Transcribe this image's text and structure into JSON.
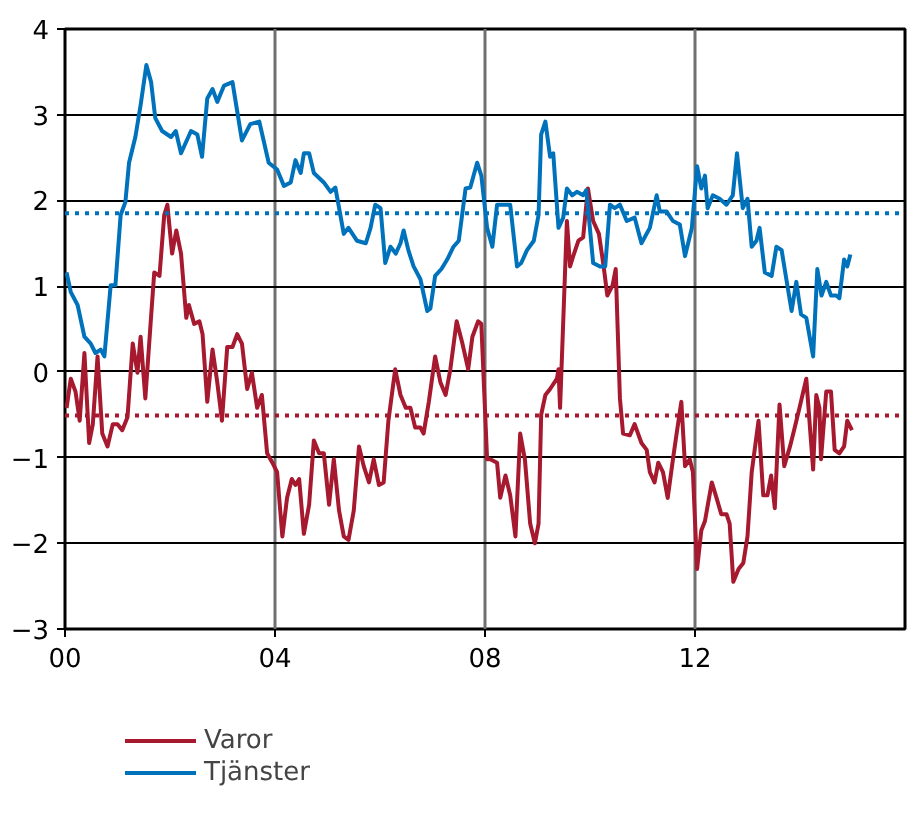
{
  "chart_data": {
    "type": "line",
    "xlim": [
      2000,
      2016
    ],
    "ylim": [
      -3,
      4
    ],
    "xticks": [
      {
        "value": 2000,
        "label": "00"
      },
      {
        "value": 2004,
        "label": "04"
      },
      {
        "value": 2008,
        "label": "08"
      },
      {
        "value": 2012,
        "label": "12"
      }
    ],
    "yticks": [
      -3,
      -2,
      -1,
      0,
      1,
      2,
      3,
      4
    ],
    "grid": true,
    "legend": "bottom",
    "line_style": "solid",
    "ref_lines": [
      {
        "axis": "y",
        "value": 1.85,
        "label": null,
        "color": "#0072bc",
        "line_style": "dotted"
      },
      {
        "axis": "y",
        "value": -0.51,
        "label": null,
        "color": "#a6192e",
        "line_style": "dotted"
      }
    ],
    "series": [
      {
        "name": "Varor",
        "color": "#a6192e",
        "x": [
          2000.03,
          2000.11,
          2000.2,
          2000.28,
          2000.37,
          2000.46,
          2000.53,
          2000.62,
          2000.71,
          2000.81,
          2000.91,
          2001.0,
          2001.09,
          2001.19,
          2001.29,
          2001.38,
          2001.44,
          2001.53,
          2001.63,
          2001.7,
          2001.8,
          2001.89,
          2001.95,
          2002.04,
          2002.12,
          2002.21,
          2002.31,
          2002.36,
          2002.46,
          2002.56,
          2002.62,
          2002.71,
          2002.81,
          2002.9,
          2002.99,
          2003.09,
          2003.19,
          2003.28,
          2003.37,
          2003.47,
          2003.56,
          2003.66,
          2003.75,
          2003.85,
          2003.95,
          2004.04,
          2004.14,
          2004.23,
          2004.32,
          2004.39,
          2004.46,
          2004.55,
          2004.65,
          2004.74,
          2004.84,
          2004.93,
          2005.03,
          2005.12,
          2005.22,
          2005.31,
          2005.4,
          2005.5,
          2005.6,
          2005.69,
          2005.79,
          2005.88,
          2005.98,
          2006.07,
          2006.16,
          2006.29,
          2006.39,
          2006.49,
          2006.58,
          2006.67,
          2006.77,
          2006.83,
          2006.93,
          2007.05,
          2007.15,
          2007.25,
          2007.34,
          2007.46,
          2007.57,
          2007.68,
          2007.76,
          2007.87,
          2007.93,
          2008.04,
          2008.1,
          2008.23,
          2008.29,
          2008.39,
          2008.48,
          2008.58,
          2008.67,
          2008.76,
          2008.86,
          2008.95,
          2009.02,
          2009.07,
          2009.15,
          2009.24,
          2009.37,
          2009.4,
          2009.43,
          2009.56,
          2009.62,
          2009.68,
          2009.78,
          2009.87,
          2009.96,
          2010.06,
          2010.17,
          2010.26,
          2010.33,
          2010.43,
          2010.49,
          2010.57,
          2010.63,
          2010.76,
          2010.85,
          2010.98,
          2011.08,
          2011.14,
          2011.23,
          2011.3,
          2011.39,
          2011.48,
          2011.58,
          2011.65,
          2011.74,
          2011.81,
          2011.9,
          2011.96,
          2012.04,
          2012.12,
          2012.19,
          2012.32,
          2012.41,
          2012.5,
          2012.6,
          2012.66,
          2012.73,
          2012.83,
          2012.92,
          2013.0,
          2013.08,
          2013.21,
          2013.3,
          2013.38,
          2013.45,
          2013.52,
          2013.61,
          2013.7,
          2013.81,
          2013.9,
          2013.99,
          2014.12,
          2014.25,
          2014.31,
          2014.37,
          2014.4,
          2014.5,
          2014.59,
          2014.66,
          2014.75,
          2014.84,
          2014.9,
          2014.99
        ],
        "values": [
          -0.42,
          -0.08,
          -0.23,
          -0.57,
          0.22,
          -0.83,
          -0.61,
          0.18,
          -0.72,
          -0.87,
          -0.61,
          -0.61,
          -0.68,
          -0.53,
          0.33,
          -0.01,
          0.41,
          -0.31,
          0.56,
          1.16,
          1.12,
          1.83,
          1.95,
          1.38,
          1.65,
          1.38,
          0.63,
          0.78,
          0.56,
          0.59,
          0.44,
          -0.35,
          0.26,
          -0.12,
          -0.57,
          0.29,
          0.29,
          0.44,
          0.33,
          -0.2,
          -0.01,
          -0.42,
          -0.27,
          -0.95,
          -1.06,
          -1.17,
          -1.92,
          -1.47,
          -1.25,
          -1.32,
          -1.25,
          -1.89,
          -1.55,
          -0.8,
          -0.95,
          -0.95,
          -1.55,
          -1.02,
          -1.62,
          -1.92,
          -1.96,
          -1.62,
          -0.87,
          -1.1,
          -1.29,
          -1.02,
          -1.32,
          -1.29,
          -0.57,
          0.03,
          -0.27,
          -0.42,
          -0.42,
          -0.65,
          -0.65,
          -0.72,
          -0.35,
          0.18,
          -0.12,
          -0.27,
          0.03,
          0.59,
          0.33,
          0.03,
          0.41,
          0.59,
          0.56,
          -1.02,
          -1.02,
          -1.06,
          -1.47,
          -1.21,
          -1.44,
          -1.92,
          -0.72,
          -1.02,
          -1.77,
          -2.0,
          -1.77,
          -0.5,
          -0.27,
          -0.2,
          -0.08,
          0.03,
          -0.42,
          1.76,
          1.23,
          1.35,
          1.53,
          1.57,
          2.14,
          1.76,
          1.61,
          1.23,
          0.89,
          1.01,
          1.2,
          -0.31,
          -0.72,
          -0.74,
          -0.61,
          -0.83,
          -0.91,
          -1.17,
          -1.29,
          -1.06,
          -1.17,
          -1.47,
          -1.02,
          -0.72,
          -0.35,
          -1.1,
          -1.02,
          -1.17,
          -2.3,
          -1.85,
          -1.74,
          -1.29,
          -1.47,
          -1.66,
          -1.66,
          -1.77,
          -2.45,
          -2.3,
          -2.23,
          -1.92,
          -1.17,
          -0.57,
          -1.44,
          -1.44,
          -1.21,
          -1.59,
          -0.38,
          -1.1,
          -0.87,
          -0.65,
          -0.42,
          -0.08,
          -1.14,
          -0.27,
          -0.42,
          -1.02,
          -0.23,
          -0.23,
          -0.91,
          -0.95,
          -0.87,
          -0.57,
          -0.68
        ]
      },
      {
        "name": "Tjänster",
        "color": "#0072bc",
        "x": [
          2000.03,
          2000.11,
          2000.24,
          2000.37,
          2000.49,
          2000.58,
          2000.68,
          2000.75,
          2000.87,
          2000.96,
          2001.06,
          2001.15,
          2001.22,
          2001.34,
          2001.44,
          2001.55,
          2001.64,
          2001.72,
          2001.85,
          2002.02,
          2002.11,
          2002.21,
          2002.4,
          2002.52,
          2002.61,
          2002.71,
          2002.81,
          2002.9,
          2003.03,
          2003.19,
          2003.37,
          2003.53,
          2003.7,
          2003.88,
          2004.04,
          2004.17,
          2004.3,
          2004.39,
          2004.49,
          2004.55,
          2004.65,
          2004.74,
          2004.93,
          2005.06,
          2005.15,
          2005.31,
          2005.4,
          2005.56,
          2005.73,
          2005.82,
          2005.91,
          2006.01,
          2006.1,
          2006.2,
          2006.3,
          2006.39,
          2006.45,
          2006.54,
          2006.64,
          2006.77,
          2006.9,
          2006.96,
          2007.05,
          2007.17,
          2007.28,
          2007.4,
          2007.5,
          2007.63,
          2007.72,
          2007.85,
          2007.93,
          2008.04,
          2008.14,
          2008.23,
          2008.35,
          2008.48,
          2008.61,
          2008.69,
          2008.8,
          2008.93,
          2009.02,
          2009.07,
          2009.15,
          2009.24,
          2009.3,
          2009.4,
          2009.49,
          2009.56,
          2009.66,
          2009.75,
          2009.87,
          2009.93,
          2010.06,
          2010.19,
          2010.29,
          2010.38,
          2010.47,
          2010.57,
          2010.7,
          2010.85,
          2010.98,
          2011.14,
          2011.27,
          2011.33,
          2011.46,
          2011.58,
          2011.71,
          2011.81,
          2011.94,
          2012.04,
          2012.12,
          2012.19,
          2012.24,
          2012.34,
          2012.47,
          2012.6,
          2012.72,
          2012.8,
          2012.91,
          2013.0,
          2013.08,
          2013.17,
          2013.23,
          2013.33,
          2013.46,
          2013.55,
          2013.65,
          2013.74,
          2013.84,
          2013.93,
          2014.02,
          2014.12,
          2014.25,
          2014.33,
          2014.41,
          2014.5,
          2014.59,
          2014.69,
          2014.75,
          2014.84,
          2014.9,
          2014.96
        ],
        "values": [
          1.16,
          0.93,
          0.78,
          0.41,
          0.33,
          0.22,
          0.26,
          0.18,
          1.01,
          1.01,
          1.83,
          1.98,
          2.44,
          2.74,
          3.11,
          3.58,
          3.38,
          2.96,
          2.81,
          2.74,
          2.81,
          2.55,
          2.81,
          2.77,
          2.51,
          3.19,
          3.3,
          3.15,
          3.34,
          3.38,
          2.7,
          2.89,
          2.92,
          2.44,
          2.36,
          2.17,
          2.21,
          2.47,
          2.32,
          2.55,
          2.55,
          2.32,
          2.21,
          2.1,
          2.15,
          1.61,
          1.68,
          1.53,
          1.5,
          1.68,
          1.95,
          1.91,
          1.27,
          1.46,
          1.38,
          1.5,
          1.65,
          1.42,
          1.23,
          1.08,
          0.71,
          0.74,
          1.12,
          1.2,
          1.31,
          1.46,
          1.53,
          2.14,
          2.15,
          2.44,
          2.29,
          1.68,
          1.46,
          1.95,
          1.95,
          1.95,
          1.23,
          1.27,
          1.42,
          1.53,
          1.83,
          2.77,
          2.92,
          2.51,
          2.55,
          1.68,
          1.8,
          2.14,
          2.06,
          2.1,
          2.06,
          2.12,
          1.27,
          1.23,
          1.23,
          1.95,
          1.91,
          1.95,
          1.76,
          1.8,
          1.5,
          1.68,
          2.06,
          1.87,
          1.87,
          1.76,
          1.72,
          1.35,
          1.68,
          2.4,
          2.14,
          2.29,
          1.91,
          2.06,
          2.02,
          1.95,
          2.06,
          2.55,
          1.91,
          2.02,
          1.46,
          1.53,
          1.68,
          1.16,
          1.12,
          1.46,
          1.42,
          1.08,
          0.71,
          1.05,
          0.67,
          0.63,
          0.18,
          1.2,
          0.89,
          1.05,
          0.89,
          0.89,
          0.86,
          1.31,
          1.23,
          1.37
        ]
      }
    ]
  }
}
